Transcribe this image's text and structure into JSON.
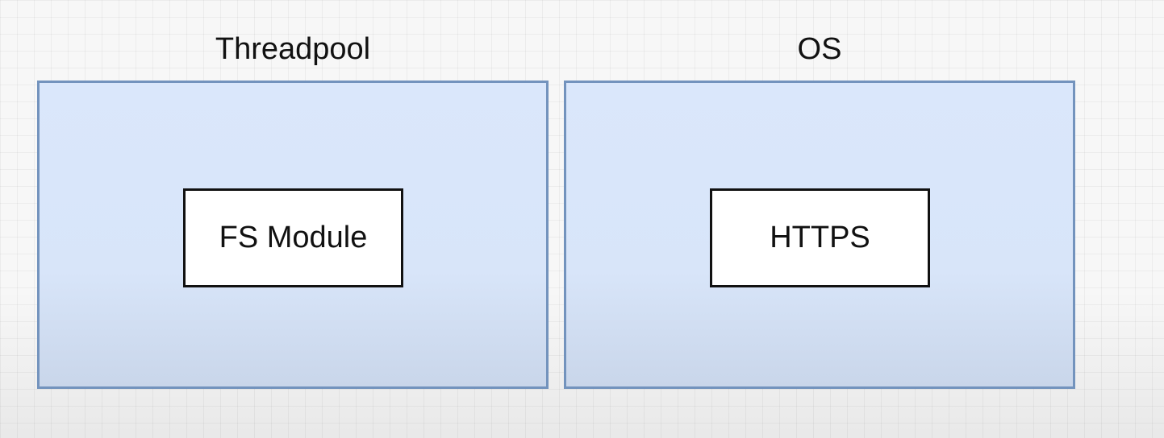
{
  "diagram": {
    "groups": [
      {
        "title": "Threadpool",
        "module_label": "FS Module"
      },
      {
        "title": "OS",
        "module_label": "HTTPS"
      }
    ],
    "colors": {
      "group_fill": "#dae7fb",
      "group_border": "#7393bd",
      "module_fill": "#ffffff",
      "module_border": "#111111",
      "text": "#111111"
    }
  }
}
